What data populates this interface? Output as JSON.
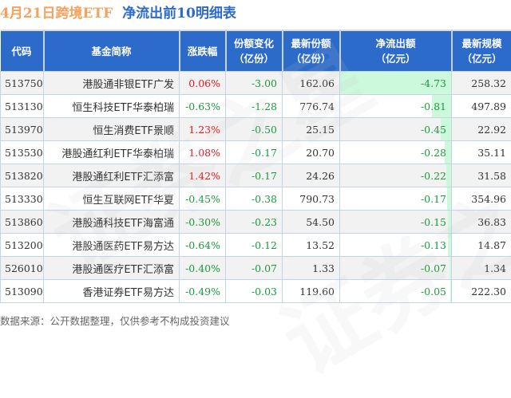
{
  "title": {
    "part1": "4月21日跨境ETF",
    "part2": "净流出前10明细表",
    "color1": "#f5a25e",
    "color2": "#2e6bc9"
  },
  "table": {
    "header_color": "#2d6bcb",
    "headers": {
      "code": "代码",
      "name": "基金简称",
      "change_pct": "涨跌幅",
      "share_change_l1": "份额变化",
      "share_change_l2": "（亿份）",
      "latest_share_l1": "最新份额",
      "latest_share_l2": "（亿份）",
      "net_outflow_l1": "净流出额",
      "net_outflow_l2": "（亿元）",
      "latest_scale_l1": "最新规模",
      "latest_scale_l2": "（亿元）"
    },
    "rows": [
      {
        "code": "513750",
        "name": "港股通非银ETF广发",
        "change_pct": "0.06%",
        "change_dir": "up",
        "share_change": "-3.00",
        "latest_share": "162.06",
        "net_outflow": "-4.73",
        "latest_scale": "258.32"
      },
      {
        "code": "513130",
        "name": "恒生科技ETF华泰柏瑞",
        "change_pct": "-0.63%",
        "change_dir": "down",
        "share_change": "-1.28",
        "latest_share": "776.74",
        "net_outflow": "-0.81",
        "latest_scale": "497.89"
      },
      {
        "code": "513970",
        "name": "恒生消费ETF景顺",
        "change_pct": "1.23%",
        "change_dir": "up",
        "share_change": "-0.50",
        "latest_share": "25.15",
        "net_outflow": "-0.45",
        "latest_scale": "22.92"
      },
      {
        "code": "513530",
        "name": "港股通红利ETF华泰柏瑞",
        "change_pct": "1.08%",
        "change_dir": "up",
        "share_change": "-0.17",
        "latest_share": "20.70",
        "net_outflow": "-0.28",
        "latest_scale": "35.11"
      },
      {
        "code": "513820",
        "name": "港股通红利ETF汇添富",
        "change_pct": "1.42%",
        "change_dir": "up",
        "share_change": "-0.17",
        "latest_share": "24.26",
        "net_outflow": "-0.22",
        "latest_scale": "31.58"
      },
      {
        "code": "513330",
        "name": "恒生互联网ETF华夏",
        "change_pct": "-0.45%",
        "change_dir": "down",
        "share_change": "-0.38",
        "latest_share": "790.73",
        "net_outflow": "-0.17",
        "latest_scale": "354.96"
      },
      {
        "code": "513860",
        "name": "港股通科技ETF海富通",
        "change_pct": "-0.30%",
        "change_dir": "down",
        "share_change": "-0.23",
        "latest_share": "54.50",
        "net_outflow": "-0.15",
        "latest_scale": "36.83"
      },
      {
        "code": "513200",
        "name": "港股通医药ETF易方达",
        "change_pct": "-0.64%",
        "change_dir": "down",
        "share_change": "-0.12",
        "latest_share": "13.52",
        "net_outflow": "-0.13",
        "latest_scale": "14.87"
      },
      {
        "code": "526010",
        "name": "港股通医疗ETF汇添富",
        "change_pct": "-0.40%",
        "change_dir": "down",
        "share_change": "-0.07",
        "latest_share": "1.33",
        "net_outflow": "-0.07",
        "latest_scale": "1.34"
      },
      {
        "code": "513090",
        "name": "香港证券ETF易方达",
        "change_pct": "-0.49%",
        "change_dir": "down",
        "share_change": "-0.03",
        "latest_share": "119.60",
        "net_outflow": "-0.05",
        "latest_scale": "222.30"
      }
    ],
    "colors": {
      "up": "#e8141c",
      "down": "#1a9a3a",
      "bar": "#ccf8dc"
    }
  },
  "footer": "数据来源：公开数据整理，仅供参考不构成投资建议",
  "watermark": "证券之星"
}
